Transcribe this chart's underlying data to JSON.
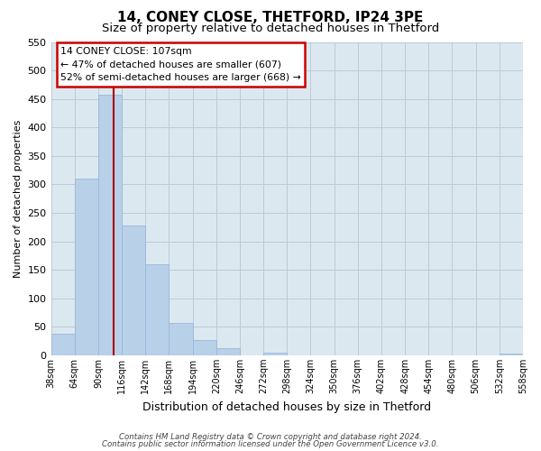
{
  "title": "14, CONEY CLOSE, THETFORD, IP24 3PE",
  "subtitle": "Size of property relative to detached houses in Thetford",
  "xlabel": "Distribution of detached houses by size in Thetford",
  "ylabel": "Number of detached properties",
  "bar_values": [
    38,
    310,
    457,
    228,
    160,
    57,
    26,
    12,
    0,
    5,
    0,
    0,
    0,
    0,
    0,
    0,
    0,
    0,
    0,
    3
  ],
  "bar_edges": [
    38,
    64,
    90,
    116,
    142,
    168,
    194,
    220,
    246,
    272,
    298,
    324,
    350,
    376,
    402,
    428,
    454,
    480,
    506,
    532,
    558
  ],
  "tick_labels": [
    "38sqm",
    "64sqm",
    "90sqm",
    "116sqm",
    "142sqm",
    "168sqm",
    "194sqm",
    "220sqm",
    "246sqm",
    "272sqm",
    "298sqm",
    "324sqm",
    "350sqm",
    "376sqm",
    "402sqm",
    "428sqm",
    "454sqm",
    "480sqm",
    "506sqm",
    "532sqm",
    "558sqm"
  ],
  "bar_color": "#b8d0e8",
  "bar_edge_color": "#9ab8d8",
  "vline_x": 107,
  "vline_color": "#aa0000",
  "ylim": [
    0,
    550
  ],
  "yticks": [
    0,
    50,
    100,
    150,
    200,
    250,
    300,
    350,
    400,
    450,
    500,
    550
  ],
  "annotation_title": "14 CONEY CLOSE: 107sqm",
  "annotation_line1": "← 47% of detached houses are smaller (607)",
  "annotation_line2": "52% of semi-detached houses are larger (668) →",
  "annotation_box_color": "#ffffff",
  "annotation_box_edge_color": "#cc0000",
  "footer1": "Contains HM Land Registry data © Crown copyright and database right 2024.",
  "footer2": "Contains public sector information licensed under the Open Government Licence v3.0.",
  "bg_color": "#ffffff",
  "plot_bg_color": "#dce8f0",
  "grid_color": "#b8ccd8",
  "title_fontsize": 11,
  "subtitle_fontsize": 9.5,
  "ylabel_fontsize": 8,
  "xlabel_fontsize": 9
}
